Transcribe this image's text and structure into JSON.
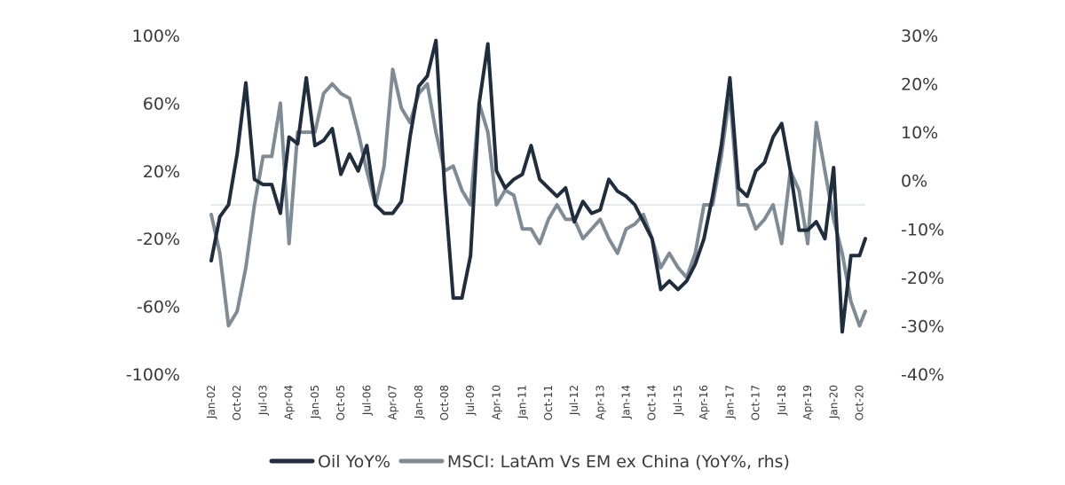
{
  "chart_data": {
    "type": "line",
    "title": "",
    "xlabel": "",
    "ylabel_left": "",
    "ylabel_right": "",
    "x_tick_labels": [
      "Jan-02",
      "Oct-02",
      "Jul-03",
      "Apr-04",
      "Jan-05",
      "Oct-05",
      "Jul-06",
      "Apr-07",
      "Jan-08",
      "Oct-08",
      "Jul-09",
      "Apr-10",
      "Jan-11",
      "Oct-11",
      "Jul-12",
      "Apr-13",
      "Jan-14",
      "Oct-14",
      "Jul-15",
      "Apr-16",
      "Jan-17",
      "Oct-17",
      "Jul-18",
      "Apr-19",
      "Jan-20",
      "Oct-20"
    ],
    "x_range": [
      "Jan-02",
      "Dec-20"
    ],
    "y_left": {
      "min": -100,
      "max": 100,
      "ticks": [
        100,
        60,
        20,
        -20,
        -60,
        -100
      ],
      "tick_labels": [
        "100%",
        "60%",
        "20%",
        "-20%",
        "-60%",
        "-100%"
      ]
    },
    "y_right": {
      "min": -40,
      "max": 30,
      "ticks": [
        30,
        20,
        10,
        0,
        -10,
        -20,
        -30,
        -40
      ],
      "tick_labels": [
        "30%",
        "20%",
        "10%",
        "0%",
        "-10%",
        "-20%",
        "-30%",
        "-40%"
      ]
    },
    "zero_line": true,
    "grid": false,
    "legend_position": "bottom-center",
    "series": [
      {
        "name": "Oil YoY%",
        "axis": "left",
        "color": "#1f2d3d",
        "points": [
          [
            "Jan-02",
            -33
          ],
          [
            "Apr-02",
            -7
          ],
          [
            "Jul-02",
            0
          ],
          [
            "Oct-02",
            30
          ],
          [
            "Jan-03",
            72
          ],
          [
            "Apr-03",
            15
          ],
          [
            "Jul-03",
            12
          ],
          [
            "Oct-03",
            12
          ],
          [
            "Jan-04",
            -5
          ],
          [
            "Apr-04",
            40
          ],
          [
            "Jul-04",
            36
          ],
          [
            "Oct-04",
            75
          ],
          [
            "Jan-05",
            35
          ],
          [
            "Apr-05",
            38
          ],
          [
            "Jul-05",
            45
          ],
          [
            "Oct-05",
            18
          ],
          [
            "Jan-06",
            30
          ],
          [
            "Apr-06",
            20
          ],
          [
            "Jul-06",
            35
          ],
          [
            "Oct-06",
            0
          ],
          [
            "Jan-07",
            -5
          ],
          [
            "Apr-07",
            -5
          ],
          [
            "Jul-07",
            2
          ],
          [
            "Oct-07",
            40
          ],
          [
            "Jan-08",
            70
          ],
          [
            "Apr-08",
            76
          ],
          [
            "Jul-08",
            97
          ],
          [
            "Oct-08",
            10
          ],
          [
            "Jan-09",
            -55
          ],
          [
            "Apr-09",
            -55
          ],
          [
            "Jul-09",
            -30
          ],
          [
            "Oct-09",
            60
          ],
          [
            "Jan-10",
            95
          ],
          [
            "Apr-10",
            20
          ],
          [
            "Jul-10",
            10
          ],
          [
            "Oct-10",
            15
          ],
          [
            "Jan-11",
            18
          ],
          [
            "Apr-11",
            35
          ],
          [
            "Jul-11",
            15
          ],
          [
            "Oct-11",
            10
          ],
          [
            "Jan-12",
            5
          ],
          [
            "Apr-12",
            10
          ],
          [
            "Jul-12",
            -10
          ],
          [
            "Oct-12",
            2
          ],
          [
            "Jan-13",
            -5
          ],
          [
            "Apr-13",
            -3
          ],
          [
            "Jul-13",
            15
          ],
          [
            "Oct-13",
            8
          ],
          [
            "Jan-14",
            5
          ],
          [
            "Apr-14",
            0
          ],
          [
            "Jul-14",
            -10
          ],
          [
            "Oct-14",
            -20
          ],
          [
            "Jan-15",
            -50
          ],
          [
            "Apr-15",
            -45
          ],
          [
            "Jul-15",
            -50
          ],
          [
            "Oct-15",
            -45
          ],
          [
            "Jan-16",
            -35
          ],
          [
            "Apr-16",
            -20
          ],
          [
            "Jul-16",
            5
          ],
          [
            "Oct-16",
            35
          ],
          [
            "Jan-17",
            75
          ],
          [
            "Apr-17",
            10
          ],
          [
            "Jul-17",
            5
          ],
          [
            "Oct-17",
            20
          ],
          [
            "Jan-18",
            25
          ],
          [
            "Apr-18",
            40
          ],
          [
            "Jul-18",
            48
          ],
          [
            "Oct-18",
            20
          ],
          [
            "Jan-19",
            -15
          ],
          [
            "Apr-19",
            -15
          ],
          [
            "Jul-19",
            -10
          ],
          [
            "Oct-19",
            -20
          ],
          [
            "Jan-20",
            22
          ],
          [
            "Apr-20",
            -75
          ],
          [
            "Jul-20",
            -30
          ],
          [
            "Oct-20",
            -30
          ],
          [
            "Dec-20",
            -20
          ]
        ]
      },
      {
        "name": "MSCI: LatAm Vs EM ex China (YoY%, rhs)",
        "axis": "right",
        "color": "#7f8c96",
        "points": [
          [
            "Jan-02",
            -7
          ],
          [
            "Apr-02",
            -15
          ],
          [
            "Jul-02",
            -30
          ],
          [
            "Oct-02",
            -27
          ],
          [
            "Jan-03",
            -18
          ],
          [
            "Apr-03",
            -5
          ],
          [
            "Jul-03",
            5
          ],
          [
            "Oct-03",
            5
          ],
          [
            "Jan-04",
            16
          ],
          [
            "Apr-04",
            -13
          ],
          [
            "Jul-04",
            10
          ],
          [
            "Oct-04",
            10
          ],
          [
            "Jan-05",
            10
          ],
          [
            "Apr-05",
            18
          ],
          [
            "Jul-05",
            20
          ],
          [
            "Oct-05",
            18
          ],
          [
            "Jan-06",
            17
          ],
          [
            "Apr-06",
            10
          ],
          [
            "Jul-06",
            2
          ],
          [
            "Oct-06",
            -5
          ],
          [
            "Jan-07",
            3
          ],
          [
            "Apr-07",
            23
          ],
          [
            "Jul-07",
            15
          ],
          [
            "Oct-07",
            12
          ],
          [
            "Jan-08",
            18
          ],
          [
            "Apr-08",
            20
          ],
          [
            "Jul-08",
            10
          ],
          [
            "Oct-08",
            2
          ],
          [
            "Jan-09",
            3
          ],
          [
            "Apr-09",
            -2
          ],
          [
            "Jul-09",
            -5
          ],
          [
            "Oct-09",
            16
          ],
          [
            "Jan-10",
            10
          ],
          [
            "Apr-10",
            -5
          ],
          [
            "Jul-10",
            -2
          ],
          [
            "Oct-10",
            -3
          ],
          [
            "Jan-11",
            -10
          ],
          [
            "Apr-11",
            -10
          ],
          [
            "Jul-11",
            -13
          ],
          [
            "Oct-11",
            -8
          ],
          [
            "Jan-12",
            -5
          ],
          [
            "Apr-12",
            -8
          ],
          [
            "Jul-12",
            -8
          ],
          [
            "Oct-12",
            -12
          ],
          [
            "Jan-13",
            -10
          ],
          [
            "Apr-13",
            -8
          ],
          [
            "Jul-13",
            -12
          ],
          [
            "Oct-13",
            -15
          ],
          [
            "Jan-14",
            -10
          ],
          [
            "Apr-14",
            -9
          ],
          [
            "Jul-14",
            -7
          ],
          [
            "Oct-14",
            -12
          ],
          [
            "Jan-15",
            -18
          ],
          [
            "Apr-15",
            -15
          ],
          [
            "Jul-15",
            -18
          ],
          [
            "Oct-15",
            -20
          ],
          [
            "Jan-16",
            -15
          ],
          [
            "Apr-16",
            -5
          ],
          [
            "Jul-16",
            -5
          ],
          [
            "Oct-16",
            5
          ],
          [
            "Jan-17",
            18
          ],
          [
            "Apr-17",
            -5
          ],
          [
            "Jul-17",
            -5
          ],
          [
            "Oct-17",
            -10
          ],
          [
            "Jan-18",
            -8
          ],
          [
            "Apr-18",
            -5
          ],
          [
            "Jul-18",
            -13
          ],
          [
            "Oct-18",
            2
          ],
          [
            "Jan-19",
            -2
          ],
          [
            "Apr-19",
            -13
          ],
          [
            "Jul-19",
            12
          ],
          [
            "Oct-19",
            2
          ],
          [
            "Jan-20",
            -8
          ],
          [
            "Apr-20",
            -15
          ],
          [
            "Jul-20",
            -25
          ],
          [
            "Oct-20",
            -30
          ],
          [
            "Dec-20",
            -27
          ]
        ]
      }
    ]
  }
}
